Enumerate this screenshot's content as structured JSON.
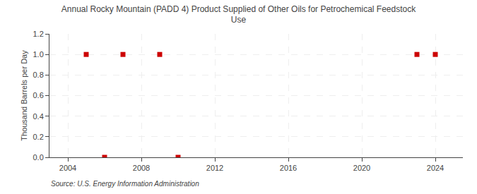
{
  "chart_data": {
    "type": "scatter",
    "title": "Annual Rocky Mountain (PADD 4) Product Supplied of Other Oils for Petrochemical Feedstock\nUse",
    "ylabel": "Thousand Barrels per Day",
    "source": "Source: U.S. Energy Information Administration",
    "x": [
      2005,
      2006,
      2007,
      2009,
      2010,
      2023,
      2024
    ],
    "values": [
      1.0,
      0.0,
      1.0,
      1.0,
      0.0,
      1.0,
      1.0
    ],
    "color": "#cc0000",
    "marker": "square",
    "xlim": [
      2003.0,
      2025.5
    ],
    "xticks": [
      2004,
      2008,
      2012,
      2016,
      2020,
      2024
    ],
    "ylim": [
      0.0,
      1.2
    ],
    "yticks": [
      {
        "value": 0,
        "label": "0.0"
      },
      0.2,
      0.4,
      0.6,
      0.8,
      {
        "value": 1,
        "label": "1.0"
      },
      1.2
    ],
    "grid": true
  }
}
